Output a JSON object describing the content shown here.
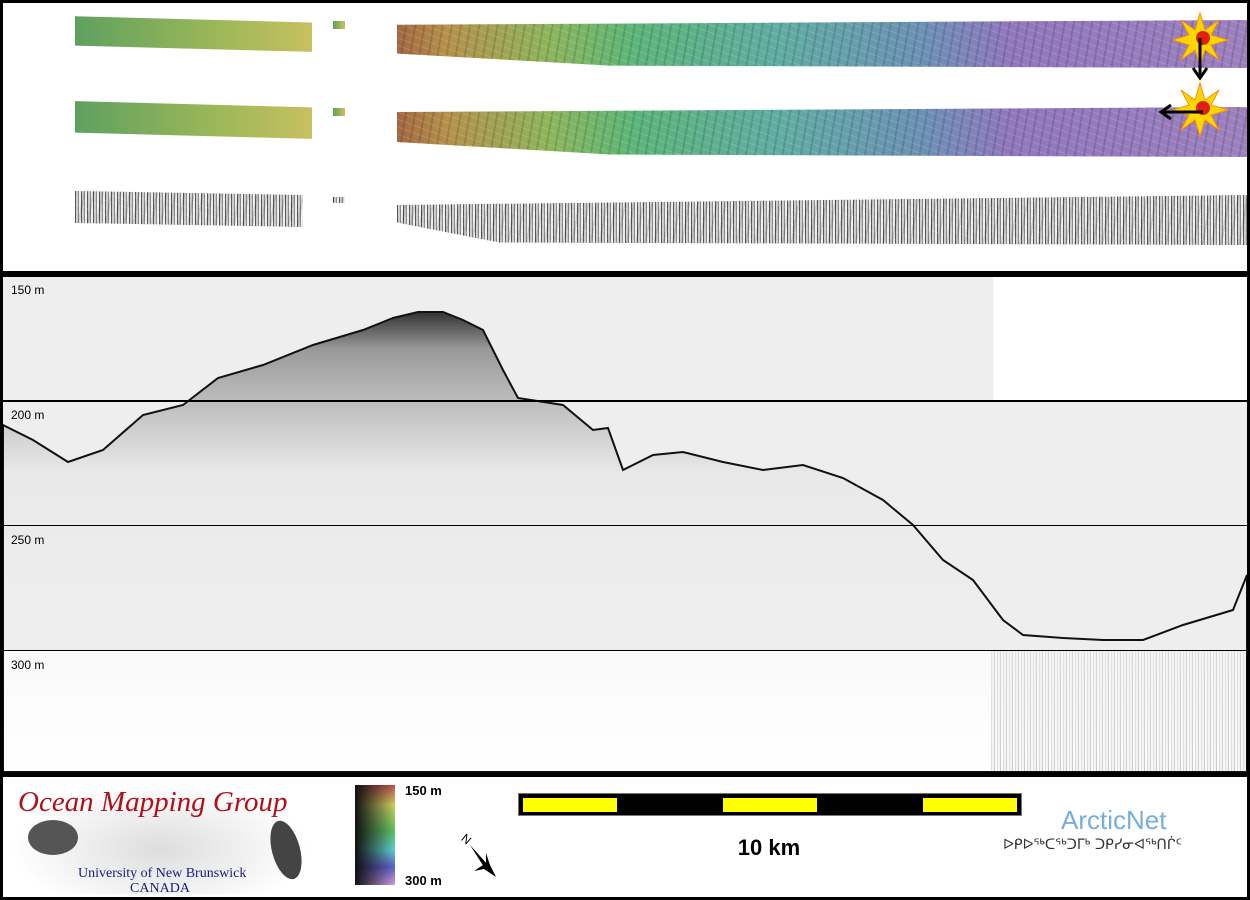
{
  "profile": {
    "depth_labels": [
      "150 m",
      "200 m",
      "250 m",
      "300 m"
    ]
  },
  "legend": {
    "top_label": "150 m",
    "bottom_label": "300 m",
    "colors": [
      "#2a2a2a",
      "#8fb0a0",
      "#d8a0e0"
    ]
  },
  "compass": {
    "north_label": "N"
  },
  "scale_bar": {
    "label": "10 km",
    "colors": [
      "#ffff00",
      "#000000"
    ]
  },
  "logos": {
    "omg_title": "Ocean Mapping Group",
    "omg_subtitle": "University of New Brunswick",
    "omg_country": "CANADA",
    "arcticnet": "ArcticNet",
    "arcticnet_syllabics": "ᐅᑭᐅᖅᑕᖅᑐᒥᒃ ᑐᑭᓯᓂᐊᖅᑎᒌᑦ"
  }
}
